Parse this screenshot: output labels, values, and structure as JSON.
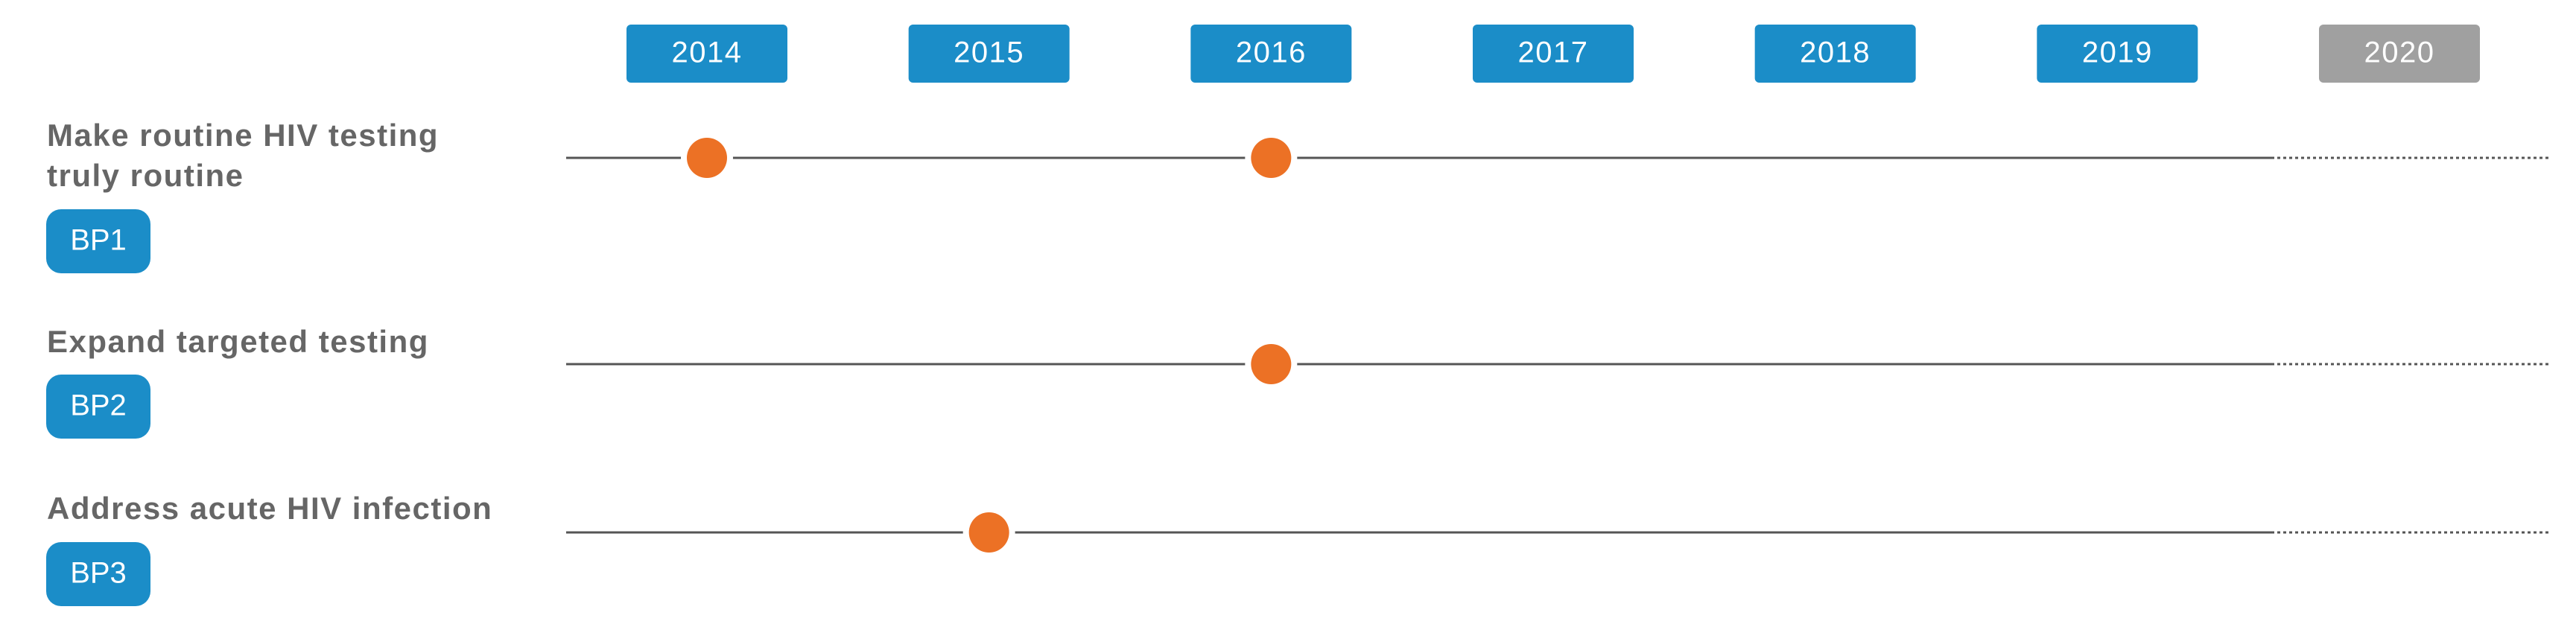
{
  "years": [
    {
      "year": 2014,
      "color": "#1b8dc8"
    },
    {
      "year": 2015,
      "color": "#1b8dc8"
    },
    {
      "year": 2016,
      "color": "#1b8dc8"
    },
    {
      "year": 2017,
      "color": "#1b8dc8"
    },
    {
      "year": 2018,
      "color": "#1b8dc8"
    },
    {
      "year": 2019,
      "color": "#1b8dc8"
    },
    {
      "year": 2020,
      "color": "#a0a0a0"
    }
  ],
  "milestone_color": "#ec7125",
  "badge_color": "#1b8dc8",
  "rows": [
    {
      "label": [
        "Make routine HIV testing",
        "truly routine"
      ],
      "badge": "BP1",
      "milestones": [
        2014,
        2016
      ]
    },
    {
      "label": [
        "Expand targeted testing"
      ],
      "badge": "BP2",
      "milestones": [
        2016
      ]
    },
    {
      "label": [
        "Address acute HIV infection"
      ],
      "badge": "BP3",
      "milestones": [
        2015
      ]
    }
  ]
}
